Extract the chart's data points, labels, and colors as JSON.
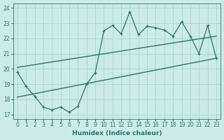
{
  "xlabel": "Humidex (Indice chaleur)",
  "bg_color": "#cceae8",
  "plot_bg_color": "#cceae8",
  "line_color": "#1e7b6e",
  "grid_color": "#aad4d0",
  "xlim": [
    -0.5,
    23.5
  ],
  "ylim": [
    16.7,
    24.3
  ],
  "xticks": [
    0,
    1,
    2,
    3,
    4,
    5,
    6,
    7,
    8,
    9,
    10,
    11,
    12,
    13,
    14,
    15,
    16,
    17,
    18,
    19,
    20,
    21,
    22,
    23
  ],
  "yticks": [
    17,
    18,
    19,
    20,
    21,
    22,
    23,
    24
  ],
  "main_x": [
    0,
    1,
    2,
    3,
    4,
    5,
    6,
    7,
    8,
    9,
    10,
    11,
    12,
    13,
    14,
    15,
    16,
    17,
    18,
    19,
    20,
    21,
    22,
    23
  ],
  "main_y": [
    19.8,
    18.85,
    18.2,
    17.5,
    17.3,
    17.5,
    17.15,
    17.55,
    19.0,
    19.75,
    22.5,
    22.85,
    22.3,
    23.75,
    22.25,
    22.8,
    22.7,
    22.55,
    22.15,
    23.1,
    22.15,
    21.0,
    22.85,
    20.7
  ],
  "line1_x": [
    0,
    23
  ],
  "line1_y": [
    20.1,
    22.15
  ],
  "line2_x": [
    0,
    23
  ],
  "line2_y": [
    18.15,
    20.7
  ],
  "marker_size": 3.0,
  "tick_fontsize": 5.5,
  "xlabel_fontsize": 6.5
}
